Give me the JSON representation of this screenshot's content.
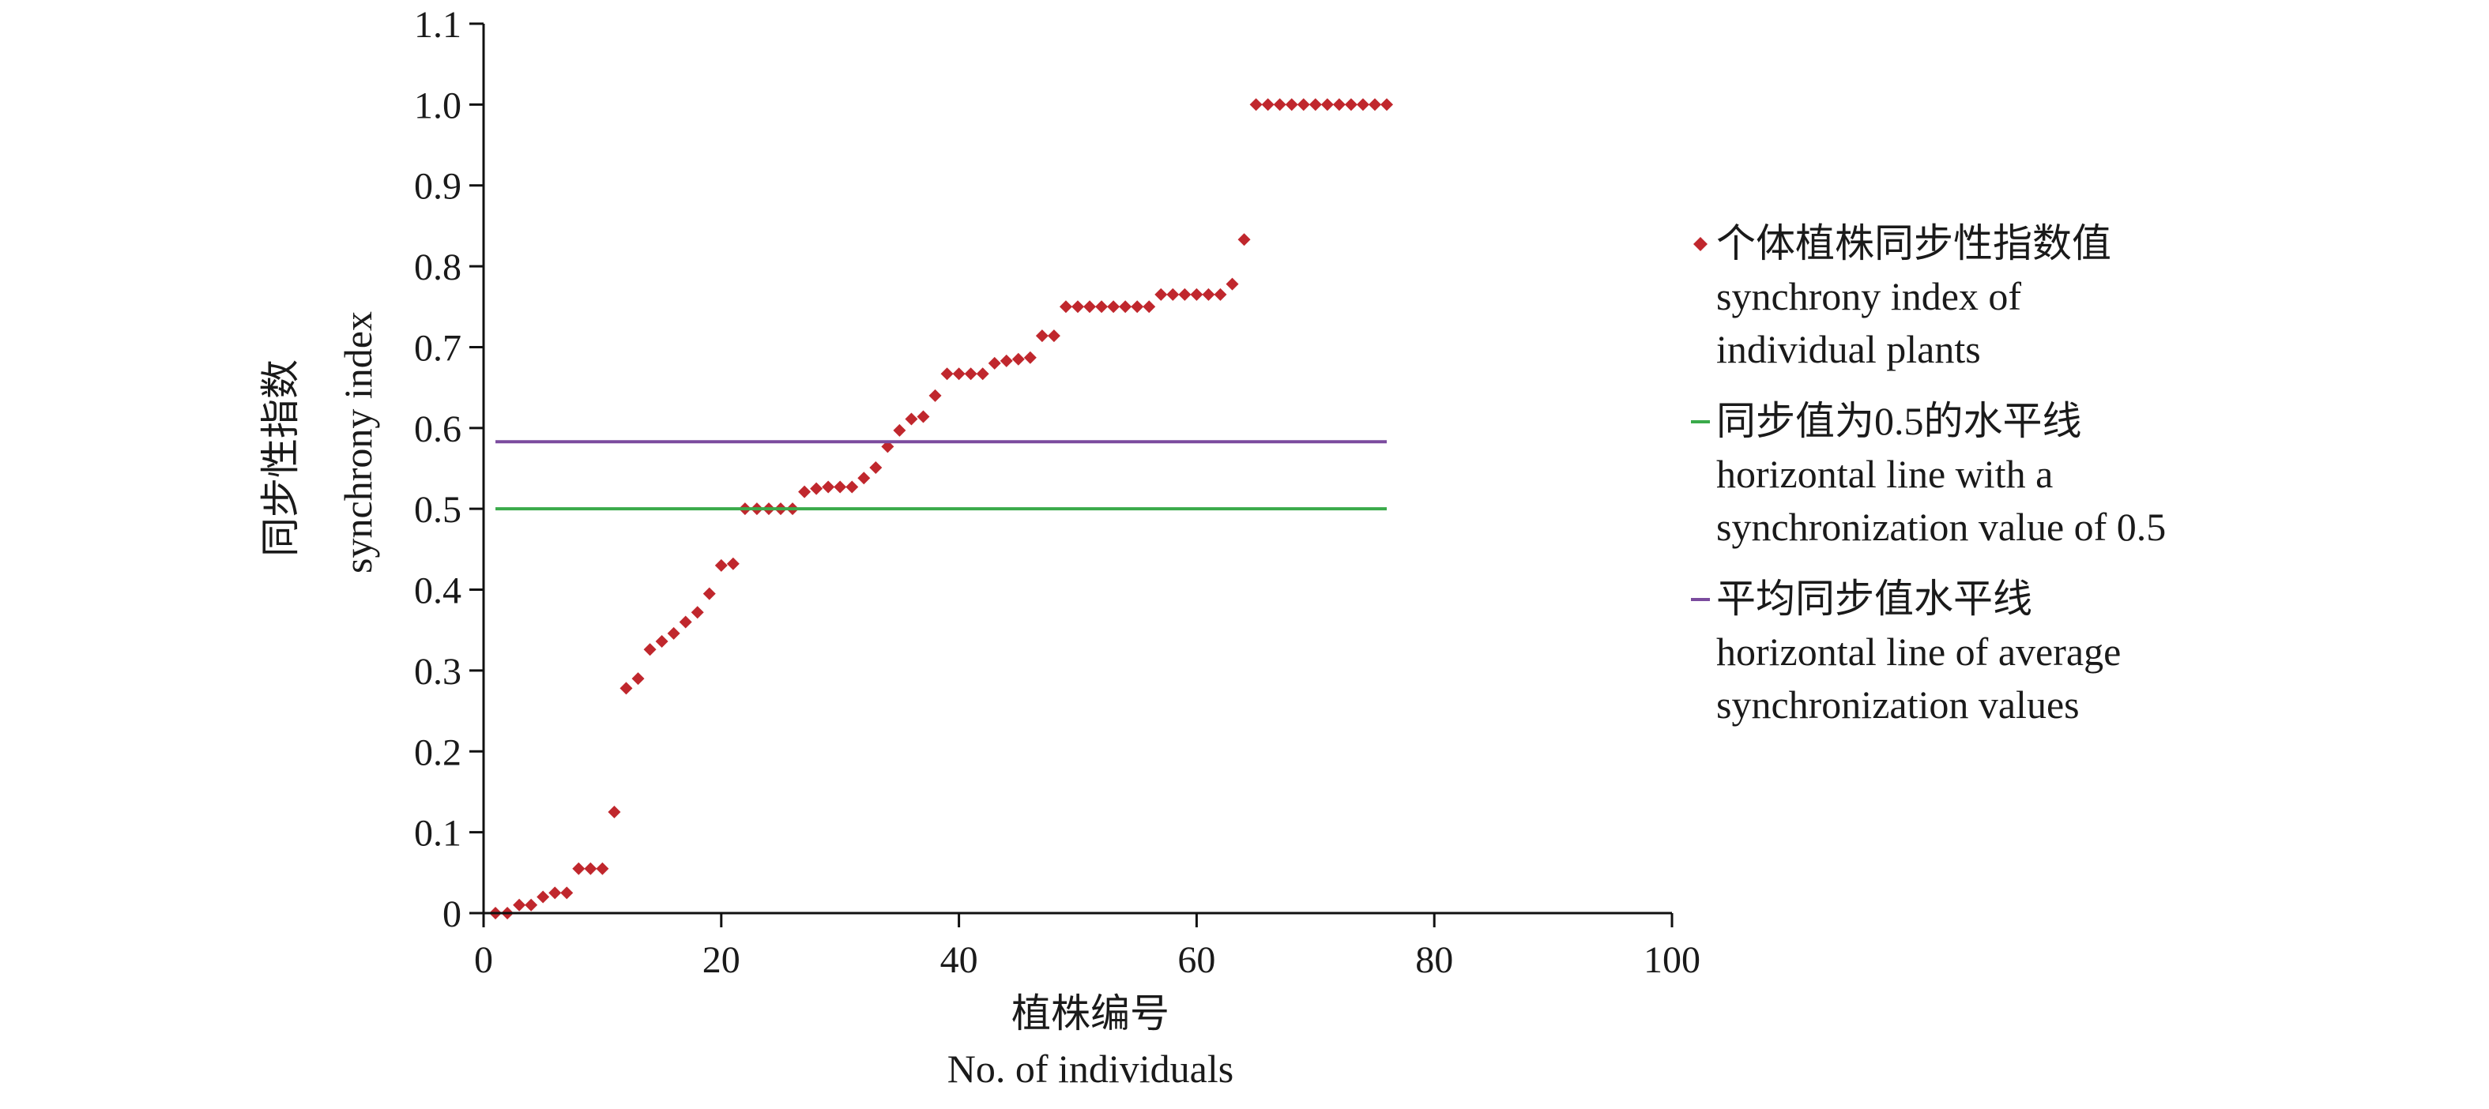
{
  "chart_data": {
    "type": "scatter",
    "xlabel_zh": "植株编号",
    "xlabel_en": "No. of individuals",
    "ylabel_zh": "同步性指数",
    "ylabel_en": "synchrony index",
    "xlim": [
      0,
      100
    ],
    "ylim": [
      0,
      1.1
    ],
    "x_ticks": [
      0,
      20,
      40,
      60,
      80,
      100
    ],
    "x_tick_labels": [
      "0",
      "20",
      "40",
      "60",
      "80",
      "100"
    ],
    "y_ticks": [
      0,
      0.1,
      0.2,
      0.3,
      0.4,
      0.5,
      0.6,
      0.7,
      0.8,
      0.9,
      1.0,
      1.1
    ],
    "y_tick_labels": [
      "0",
      "0.1",
      "0.2",
      "0.3",
      "0.4",
      "0.5",
      "0.6",
      "0.7",
      "0.8",
      "0.9",
      "1.0",
      "1.1"
    ],
    "grid": false,
    "legend_position": "right",
    "series": [
      {
        "name": "个体植株同步性指数值 synchrony index of individual plants",
        "legend_lines": [
          "个体植株同步性指数值",
          "synchrony index of",
          "individual plants"
        ],
        "type": "scatter",
        "marker": "diamond",
        "color": "#c0272d",
        "x": [
          1,
          2,
          3,
          4,
          5,
          6,
          7,
          8,
          9,
          10,
          11,
          12,
          13,
          14,
          15,
          16,
          17,
          18,
          19,
          20,
          21,
          22,
          23,
          24,
          25,
          26,
          27,
          28,
          29,
          30,
          31,
          32,
          33,
          34,
          35,
          36,
          37,
          38,
          39,
          40,
          41,
          42,
          43,
          44,
          45,
          46,
          47,
          48,
          49,
          50,
          51,
          52,
          53,
          54,
          55,
          56,
          57,
          58,
          59,
          60,
          61,
          62,
          63,
          64,
          65,
          66,
          67,
          68,
          69,
          70,
          71,
          72,
          73,
          74,
          75,
          76
        ],
        "y": [
          0,
          0,
          0.01,
          0.01,
          0.02,
          0.025,
          0.025,
          0.055,
          0.055,
          0.055,
          0.125,
          0.278,
          0.29,
          0.326,
          0.336,
          0.346,
          0.36,
          0.372,
          0.395,
          0.43,
          0.432,
          0.5,
          0.5,
          0.5,
          0.5,
          0.5,
          0.521,
          0.525,
          0.527,
          0.527,
          0.527,
          0.538,
          0.551,
          0.577,
          0.597,
          0.611,
          0.614,
          0.64,
          0.667,
          0.667,
          0.667,
          0.667,
          0.68,
          0.683,
          0.685,
          0.687,
          0.714,
          0.714,
          0.75,
          0.75,
          0.75,
          0.75,
          0.75,
          0.75,
          0.75,
          0.75,
          0.765,
          0.765,
          0.765,
          0.765,
          0.765,
          0.765,
          0.778,
          0.833,
          1.0,
          1.0,
          1.0,
          1.0,
          1.0,
          1.0,
          1.0,
          1.0,
          1.0,
          1.0,
          1.0,
          1.0
        ]
      },
      {
        "name": "同步值为0.5的水平线 horizontal line with a synchronization value of 0.5",
        "legend_lines": [
          "同步值为0.5的水平线",
          "horizontal line with a",
          "synchronization value of 0.5"
        ],
        "type": "line",
        "color": "#3aaa4a",
        "x": [
          1,
          76
        ],
        "y": [
          0.5,
          0.5
        ]
      },
      {
        "name": "平均同步值水平线 horizontal line of average synchronization values",
        "legend_lines": [
          "平均同步值水平线",
          "horizontal line of average",
          "synchronization values"
        ],
        "type": "line",
        "color": "#7b4b9e",
        "x": [
          1,
          76
        ],
        "y": [
          0.583,
          0.583
        ]
      }
    ]
  }
}
